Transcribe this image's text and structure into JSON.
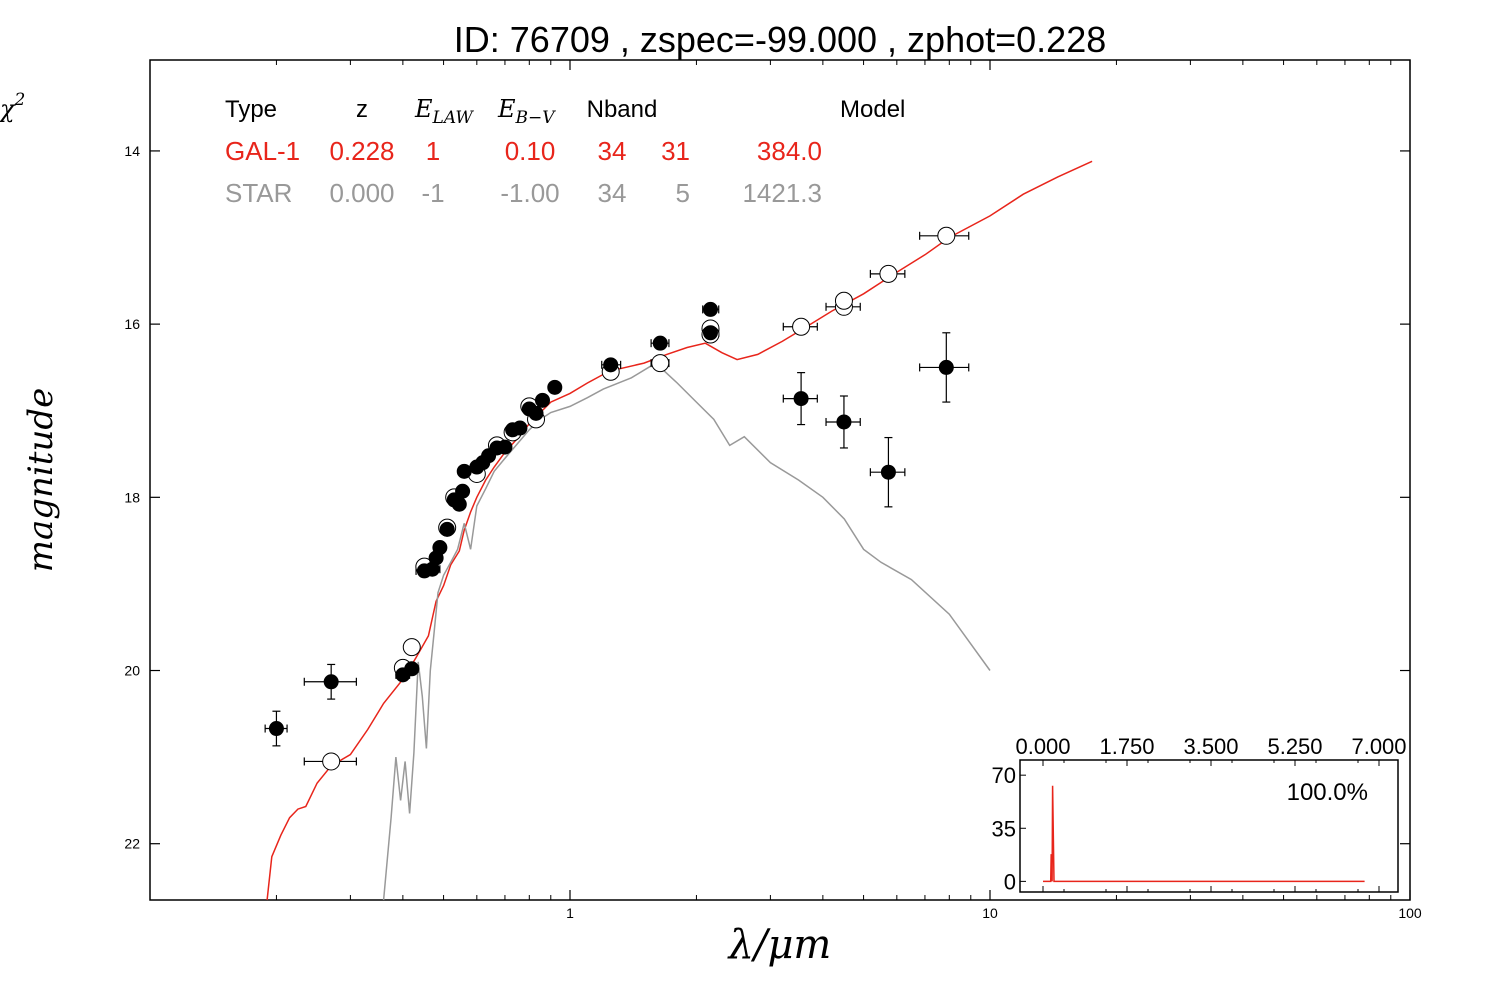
{
  "chart_data": [
    {
      "type": "scatter",
      "title": "ID:  76709 , zspec=-99.000 , zphot=0.228",
      "xlabel": "λ/μm",
      "ylabel": "magnitude",
      "x_scale": "log",
      "xlim": [
        0.1,
        100
      ],
      "ylim": [
        22.65,
        12.95
      ],
      "y_inverted": true,
      "x_ticks": [
        1,
        10,
        100
      ],
      "x_tick_labels": [
        "1",
        "10",
        "100"
      ],
      "y_ticks": [
        14,
        16,
        18,
        20,
        22
      ],
      "y_tick_labels": [
        "14",
        "16",
        "18",
        "20",
        "22"
      ],
      "grid": false,
      "legend_table": {
        "headers": [
          "Type",
          "z",
          "E_LAW",
          "E_B−V",
          "Nband",
          "",
          "Model",
          "χ²"
        ],
        "header_math": {
          "E_LAW": {
            "base": "E",
            "sub": "LAW"
          },
          "E_B−V": {
            "base": "E",
            "sub": "B−V"
          },
          "χ²": {
            "base": "χ",
            "sup": "2"
          }
        },
        "rows": [
          {
            "name": "GAL-1",
            "color": "#e8251b",
            "cells": [
              "GAL-1",
              "0.228",
              "1",
              "0.10",
              "34",
              "31",
              "384.0"
            ]
          },
          {
            "name": "STAR",
            "color": "#999999",
            "cells": [
              "STAR",
              "0.000",
              "-1",
              "-1.00",
              "34",
              "5",
              "1421.3"
            ]
          }
        ]
      },
      "series": [
        {
          "name": "GAL-1",
          "kind": "model-curve",
          "color": "#e8251b",
          "points": [
            [
              0.19,
              22.65
            ],
            [
              0.195,
              22.15
            ],
            [
              0.205,
              21.9
            ],
            [
              0.215,
              21.7
            ],
            [
              0.225,
              21.6
            ],
            [
              0.235,
              21.57
            ],
            [
              0.25,
              21.3
            ],
            [
              0.27,
              21.1
            ],
            [
              0.3,
              20.97
            ],
            [
              0.33,
              20.68
            ],
            [
              0.36,
              20.38
            ],
            [
              0.4,
              20.1
            ],
            [
              0.43,
              19.85
            ],
            [
              0.46,
              19.6
            ],
            [
              0.48,
              19.2
            ],
            [
              0.5,
              19.02
            ],
            [
              0.52,
              18.78
            ],
            [
              0.545,
              18.62
            ],
            [
              0.56,
              18.38
            ],
            [
              0.58,
              18.17
            ],
            [
              0.6,
              18.0
            ],
            [
              0.63,
              17.8
            ],
            [
              0.66,
              17.65
            ],
            [
              0.7,
              17.48
            ],
            [
              0.75,
              17.32
            ],
            [
              0.8,
              17.15
            ],
            [
              0.85,
              17.02
            ],
            [
              0.9,
              16.9
            ],
            [
              1.0,
              16.8
            ],
            [
              1.1,
              16.68
            ],
            [
              1.2,
              16.58
            ],
            [
              1.3,
              16.52
            ],
            [
              1.5,
              16.45
            ],
            [
              1.7,
              16.35
            ],
            [
              1.9,
              16.27
            ],
            [
              2.1,
              16.22
            ],
            [
              2.3,
              16.33
            ],
            [
              2.5,
              16.41
            ],
            [
              2.8,
              16.35
            ],
            [
              3.2,
              16.2
            ],
            [
              3.6,
              16.05
            ],
            [
              4.2,
              15.85
            ],
            [
              5.0,
              15.65
            ],
            [
              6.0,
              15.4
            ],
            [
              7.0,
              15.2
            ],
            [
              8.0,
              15.0
            ],
            [
              10,
              14.75
            ],
            [
              12,
              14.5
            ],
            [
              14.5,
              14.3
            ],
            [
              17.5,
              14.12
            ]
          ]
        },
        {
          "name": "STAR",
          "kind": "model-curve",
          "color": "#999999",
          "points": [
            [
              0.36,
              22.65
            ],
            [
              0.375,
              21.7
            ],
            [
              0.385,
              21.0
            ],
            [
              0.395,
              21.5
            ],
            [
              0.405,
              21.05
            ],
            [
              0.415,
              21.65
            ],
            [
              0.425,
              20.95
            ],
            [
              0.435,
              19.9
            ],
            [
              0.445,
              20.3
            ],
            [
              0.455,
              20.9
            ],
            [
              0.465,
              20.0
            ],
            [
              0.475,
              19.55
            ],
            [
              0.485,
              19.1
            ],
            [
              0.5,
              18.9
            ],
            [
              0.52,
              18.75
            ],
            [
              0.54,
              18.6
            ],
            [
              0.56,
              18.3
            ],
            [
              0.58,
              18.6
            ],
            [
              0.6,
              18.1
            ],
            [
              0.63,
              17.9
            ],
            [
              0.66,
              17.7
            ],
            [
              0.7,
              17.55
            ],
            [
              0.75,
              17.38
            ],
            [
              0.8,
              17.22
            ],
            [
              0.85,
              17.1
            ],
            [
              0.9,
              17.02
            ],
            [
              1.0,
              16.95
            ],
            [
              1.1,
              16.85
            ],
            [
              1.2,
              16.75
            ],
            [
              1.4,
              16.62
            ],
            [
              1.6,
              16.45
            ],
            [
              1.8,
              16.68
            ],
            [
              2.0,
              16.9
            ],
            [
              2.2,
              17.1
            ],
            [
              2.4,
              17.4
            ],
            [
              2.6,
              17.3
            ],
            [
              3.0,
              17.6
            ],
            [
              3.5,
              17.8
            ],
            [
              4.0,
              18.0
            ],
            [
              4.5,
              18.25
            ],
            [
              5.0,
              18.6
            ],
            [
              5.5,
              18.75
            ],
            [
              6.5,
              18.95
            ],
            [
              8.0,
              19.35
            ],
            [
              10,
              20.0
            ]
          ]
        },
        {
          "name": "observed",
          "kind": "filled-points",
          "color": "#000000",
          "points": [
            {
              "x": 0.2,
              "y": 20.67,
              "xerr": [
                0.188,
                0.212
              ],
              "yerr": 0.2
            },
            {
              "x": 0.27,
              "y": 20.13,
              "xerr": [
                0.233,
                0.31
              ],
              "yerr": 0.2
            },
            {
              "x": 0.4,
              "y": 20.05,
              "xerr": [
                0.385,
                0.415
              ]
            },
            {
              "x": 0.42,
              "y": 19.98,
              "xerr": [
                0.405,
                0.435
              ]
            },
            {
              "x": 0.45,
              "y": 18.85,
              "xerr": [
                0.43,
                0.47
              ]
            },
            {
              "x": 0.47,
              "y": 18.83,
              "xerr": [
                0.45,
                0.49
              ]
            },
            {
              "x": 0.48,
              "y": 18.7
            },
            {
              "x": 0.49,
              "y": 18.58
            },
            {
              "x": 0.51,
              "y": 18.37
            },
            {
              "x": 0.53,
              "y": 18.03
            },
            {
              "x": 0.545,
              "y": 18.08
            },
            {
              "x": 0.555,
              "y": 17.93
            },
            {
              "x": 0.56,
              "y": 17.7
            },
            {
              "x": 0.6,
              "y": 17.65
            },
            {
              "x": 0.62,
              "y": 17.6
            },
            {
              "x": 0.64,
              "y": 17.52
            },
            {
              "x": 0.67,
              "y": 17.43
            },
            {
              "x": 0.7,
              "y": 17.42
            },
            {
              "x": 0.73,
              "y": 17.22,
              "xerr": [
                0.71,
                0.76
              ]
            },
            {
              "x": 0.76,
              "y": 17.2
            },
            {
              "x": 0.8,
              "y": 16.98
            },
            {
              "x": 0.83,
              "y": 17.03
            },
            {
              "x": 0.86,
              "y": 16.88
            },
            {
              "x": 0.92,
              "y": 16.73,
              "xerr": [
                0.9,
                0.95
              ]
            },
            {
              "x": 1.25,
              "y": 16.47,
              "xerr": [
                1.19,
                1.32
              ]
            },
            {
              "x": 1.64,
              "y": 16.22,
              "xerr": [
                1.56,
                1.72
              ]
            },
            {
              "x": 2.16,
              "y": 15.83,
              "xerr": [
                2.07,
                2.26
              ]
            },
            {
              "x": 2.16,
              "y": 16.1,
              "xerr": [
                2.07,
                2.26
              ]
            },
            {
              "x": 3.55,
              "y": 16.86,
              "xerr": [
                3.22,
                3.88
              ],
              "yerr": 0.3
            },
            {
              "x": 4.49,
              "y": 17.13,
              "xerr": [
                4.07,
                4.91
              ],
              "yerr": 0.3
            },
            {
              "x": 5.73,
              "y": 17.71,
              "xerr": [
                5.19,
                6.27
              ],
              "yerr": 0.4
            },
            {
              "x": 7.87,
              "y": 16.5,
              "xerr": [
                6.8,
                8.9
              ],
              "yerr": 0.4
            }
          ]
        },
        {
          "name": "model-magnitudes",
          "kind": "open-points",
          "color": "#ffffff",
          "points": [
            {
              "x": 0.27,
              "y": 21.05,
              "xerr": [
                0.233,
                0.31
              ]
            },
            {
              "x": 0.4,
              "y": 19.97,
              "xerr": [
                0.385,
                0.415
              ]
            },
            {
              "x": 0.42,
              "y": 19.73
            },
            {
              "x": 0.45,
              "y": 18.8
            },
            {
              "x": 0.51,
              "y": 18.35
            },
            {
              "x": 0.53,
              "y": 18.0
            },
            {
              "x": 0.6,
              "y": 17.73
            },
            {
              "x": 0.67,
              "y": 17.4
            },
            {
              "x": 0.73,
              "y": 17.25
            },
            {
              "x": 0.8,
              "y": 16.95
            },
            {
              "x": 0.83,
              "y": 17.1
            },
            {
              "x": 1.25,
              "y": 16.55
            },
            {
              "x": 1.64,
              "y": 16.45,
              "xerr": [
                1.56,
                1.72
              ]
            },
            {
              "x": 2.16,
              "y": 16.05
            },
            {
              "x": 2.16,
              "y": 16.12
            },
            {
              "x": 3.55,
              "y": 16.03,
              "xerr": [
                3.22,
                3.88
              ]
            },
            {
              "x": 4.49,
              "y": 15.8,
              "xerr": [
                4.07,
                4.91
              ]
            },
            {
              "x": 4.49,
              "y": 15.73
            },
            {
              "x": 5.73,
              "y": 15.42,
              "xerr": [
                5.19,
                6.27
              ]
            },
            {
              "x": 7.87,
              "y": 14.98,
              "xerr": [
                6.8,
                8.9
              ]
            }
          ]
        }
      ]
    },
    {
      "type": "line",
      "inset": true,
      "xlim": [
        0.0,
        7.0
      ],
      "ylim": [
        -7,
        80
      ],
      "x_ticks": [
        0.0,
        1.75,
        3.5,
        5.25,
        7.0
      ],
      "x_tick_labels": [
        "0.000",
        "1.750",
        "3.500",
        "5.250",
        "7.000"
      ],
      "y_ticks": [
        0,
        35,
        70
      ],
      "y_tick_labels": [
        "0",
        "35",
        "70"
      ],
      "annotation": "100.0%",
      "series": [
        {
          "color": "#e8251b",
          "points": [
            [
              0.0,
              0
            ],
            [
              0.16,
              0
            ],
            [
              0.17,
              18
            ],
            [
              0.19,
              0
            ],
            [
              0.2,
              63
            ],
            [
              0.23,
              0
            ],
            [
              6.7,
              0
            ]
          ]
        }
      ]
    }
  ]
}
